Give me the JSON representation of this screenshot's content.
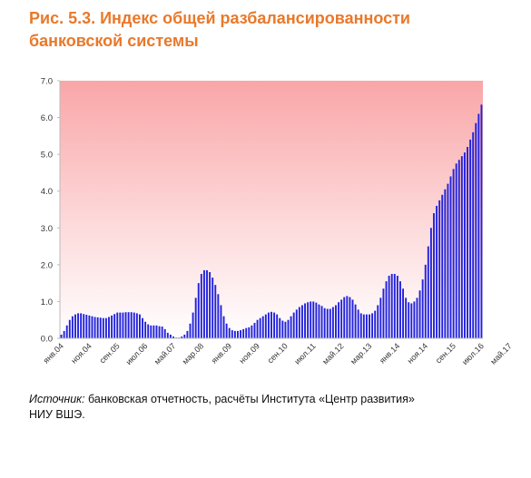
{
  "title": {
    "line1": "Рис. 5.3. Индекс общей разбалансированности",
    "line2": "банковской системы"
  },
  "source": {
    "label": "Источник:",
    "text": " банковская отчетность, расчёты Института «Центр развития»",
    "text2": "НИУ ВШЭ."
  },
  "colors": {
    "title": "#e8792b",
    "bar": "#2222dd",
    "background_top": "#f9a6a8",
    "background_bottom": "#ffffff"
  },
  "chart_data": {
    "type": "area",
    "ylim": [
      0,
      7
    ],
    "yticks": [
      "0.0",
      "1.0",
      "2.0",
      "3.0",
      "4.0",
      "5.0",
      "6.0",
      "7.0"
    ],
    "xtick_labels": [
      "янв.04",
      "ноя.04",
      "сен.05",
      "июл.06",
      "май.07",
      "мар.08",
      "янв.09",
      "ноя.09",
      "сен.10",
      "июл.11",
      "май.12",
      "мар.13",
      "янв.14",
      "ноя.14",
      "сен.15",
      "июл.16",
      "май.17"
    ],
    "x_start": "янв.04",
    "x_end": "авг.17",
    "grid": false,
    "series": [
      {
        "values": [
          0.1,
          0.2,
          0.35,
          0.5,
          0.6,
          0.65,
          0.68,
          0.68,
          0.66,
          0.64,
          0.62,
          0.6,
          0.58,
          0.57,
          0.56,
          0.55,
          0.55,
          0.58,
          0.62,
          0.66,
          0.7,
          0.7,
          0.7,
          0.71,
          0.71,
          0.71,
          0.7,
          0.68,
          0.65,
          0.55,
          0.45,
          0.38,
          0.35,
          0.35,
          0.35,
          0.33,
          0.32,
          0.25,
          0.15,
          0.1,
          0.05,
          0.02,
          0.02,
          0.05,
          0.1,
          0.2,
          0.4,
          0.7,
          1.1,
          1.5,
          1.75,
          1.85,
          1.85,
          1.8,
          1.65,
          1.45,
          1.2,
          0.9,
          0.6,
          0.4,
          0.28,
          0.22,
          0.2,
          0.2,
          0.22,
          0.25,
          0.28,
          0.3,
          0.35,
          0.42,
          0.5,
          0.55,
          0.6,
          0.65,
          0.7,
          0.72,
          0.7,
          0.65,
          0.55,
          0.48,
          0.45,
          0.5,
          0.6,
          0.7,
          0.78,
          0.85,
          0.9,
          0.95,
          0.98,
          1.0,
          1.0,
          0.97,
          0.92,
          0.88,
          0.82,
          0.8,
          0.8,
          0.85,
          0.9,
          0.98,
          1.05,
          1.12,
          1.15,
          1.12,
          1.05,
          0.92,
          0.78,
          0.68,
          0.65,
          0.65,
          0.65,
          0.68,
          0.75,
          0.9,
          1.1,
          1.35,
          1.55,
          1.7,
          1.75,
          1.75,
          1.7,
          1.55,
          1.35,
          1.1,
          0.98,
          0.95,
          1.0,
          1.1,
          1.3,
          1.6,
          2.0,
          2.5,
          3.0,
          3.4,
          3.6,
          3.75,
          3.9,
          4.05,
          4.2,
          4.4,
          4.6,
          4.75,
          4.85,
          4.95,
          5.05,
          5.2,
          5.4,
          5.6,
          5.85,
          6.1,
          6.35
        ]
      }
    ]
  }
}
